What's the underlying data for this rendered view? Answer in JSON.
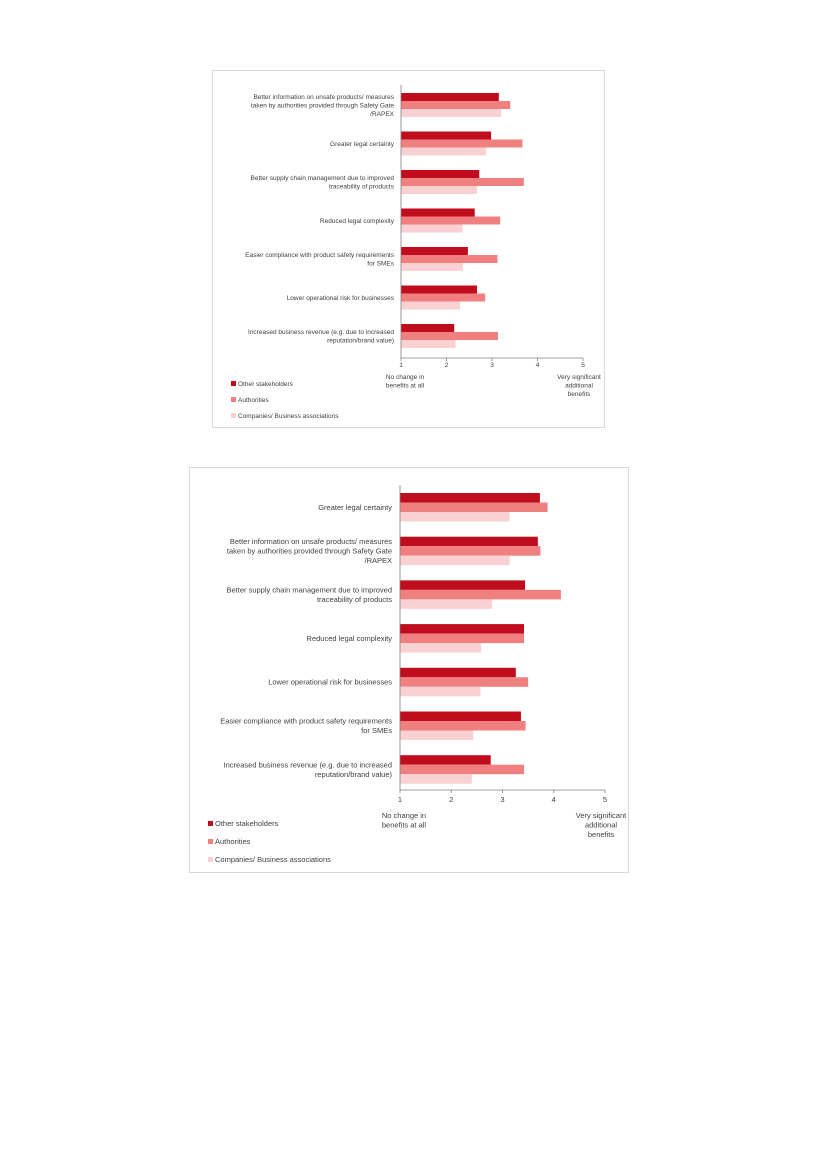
{
  "colors": {
    "other_stakeholders": "#c00d1e",
    "authorities": "#f08080",
    "companies": "#f9d1d3",
    "axis": "#7f7f7f"
  },
  "chart_data": [
    {
      "type": "bar",
      "orientation": "horizontal",
      "categories": [
        "Better information on unsafe products/ measures taken by authorities provided through Safety Gate /RAPEX",
        "Greater legal certainty",
        "Better supply chain management due to improved traceability of products",
        "Reduced legal complexity",
        "Easier compliance with product safety requirements for SMEs",
        "Lower operational risk for businesses",
        "Increased business revenue (e.g. due to increased reputation/brand value)"
      ],
      "series": [
        {
          "name": "Other stakeholders",
          "values": [
            3.15,
            2.98,
            2.72,
            2.62,
            2.47,
            2.67,
            2.17
          ]
        },
        {
          "name": "Authorities",
          "values": [
            3.4,
            3.67,
            3.7,
            3.18,
            3.12,
            2.85,
            3.13
          ]
        },
        {
          "name": "Companies/ Business associations",
          "values": [
            3.2,
            2.87,
            2.67,
            2.35,
            2.36,
            2.3,
            2.2
          ]
        }
      ],
      "xlim": [
        1,
        5
      ],
      "xticks": [
        "1",
        "2",
        "3",
        "4",
        "5"
      ],
      "xlabel_left": "No change in benefits at all",
      "xlabel_right": "Very significant additional benefits",
      "legend_position": "bottom-left",
      "grid": false
    },
    {
      "type": "bar",
      "orientation": "horizontal",
      "categories": [
        "Greater legal certainty",
        "Better information on unsafe products/ measures taken by authorities provided through Safety Gate /RAPEX",
        "Better supply chain management due to improved traceability of products",
        "Reduced legal complexity",
        "Lower operational risk for businesses",
        "Easier compliance with product safety requirements for SMEs",
        "Increased business revenue (e.g. due to increased reputation/brand value)"
      ],
      "series": [
        {
          "name": "Other stakeholders",
          "values": [
            3.73,
            3.69,
            3.44,
            3.42,
            3.26,
            3.36,
            2.77
          ]
        },
        {
          "name": "Authorities",
          "values": [
            3.88,
            3.74,
            4.14,
            3.42,
            3.5,
            3.45,
            3.42
          ]
        },
        {
          "name": "Companies/ Business associations",
          "values": [
            3.14,
            3.14,
            2.8,
            2.58,
            2.57,
            2.43,
            2.4
          ]
        }
      ],
      "xlim": [
        1,
        5
      ],
      "xticks": [
        "1",
        "2",
        "3",
        "4",
        "5"
      ],
      "xlabel_left": "No change in benefits at all",
      "xlabel_right": "Very significant additional benefits",
      "legend_position": "bottom-left",
      "grid": false
    }
  ]
}
